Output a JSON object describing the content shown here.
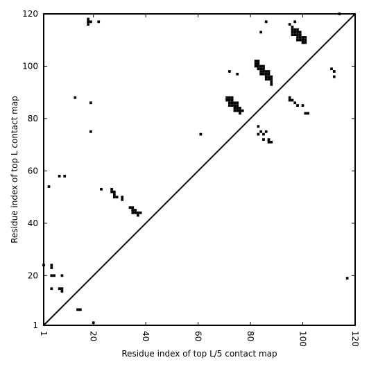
{
  "chart_data": {
    "type": "heatmap",
    "title": "",
    "xlabel": "Residue index of top L/5 contact map",
    "ylabel": "Residue index of top L contact map",
    "xlim": [
      1,
      120
    ],
    "ylim": [
      1,
      120
    ],
    "xticks": [
      1,
      20,
      40,
      60,
      80,
      100,
      120
    ],
    "yticks": [
      1,
      20,
      40,
      60,
      80,
      100,
      120
    ],
    "diagonal": true,
    "grid": false,
    "cell_color": "#000000",
    "lower_points": [
      [
        1,
        24
      ],
      [
        4,
        23
      ],
      [
        4,
        24
      ],
      [
        4,
        20
      ],
      [
        5,
        20
      ],
      [
        8,
        20
      ],
      [
        4,
        15
      ],
      [
        7,
        15
      ],
      [
        8,
        15
      ],
      [
        8,
        14
      ],
      [
        9,
        58
      ],
      [
        14,
        7
      ],
      [
        15,
        7
      ],
      [
        20,
        2
      ],
      [
        27,
        53
      ],
      [
        27,
        52
      ],
      [
        28,
        52
      ],
      [
        28,
        51
      ],
      [
        28,
        50
      ],
      [
        29,
        50
      ],
      [
        31,
        50
      ],
      [
        31,
        49
      ],
      [
        23,
        53
      ],
      [
        34,
        46
      ],
      [
        35,
        46
      ],
      [
        35,
        45
      ],
      [
        36,
        45
      ],
      [
        35,
        44
      ],
      [
        36,
        44
      ],
      [
        37,
        44
      ],
      [
        37,
        43
      ],
      [
        38,
        44
      ],
      [
        61,
        74
      ],
      [
        71,
        88
      ],
      [
        72,
        88
      ],
      [
        73,
        88
      ],
      [
        71,
        87
      ],
      [
        72,
        87
      ],
      [
        73,
        87
      ],
      [
        72,
        86
      ],
      [
        73,
        86
      ],
      [
        72,
        85
      ],
      [
        73,
        85
      ],
      [
        74,
        86
      ],
      [
        75,
        86
      ],
      [
        74,
        85
      ],
      [
        75,
        85
      ],
      [
        74,
        84
      ],
      [
        75,
        84
      ],
      [
        74,
        83
      ],
      [
        75,
        83
      ],
      [
        76,
        84
      ],
      [
        76,
        83
      ],
      [
        77,
        83
      ],
      [
        76,
        82
      ],
      [
        72,
        98
      ],
      [
        75,
        97
      ],
      [
        82,
        102
      ],
      [
        83,
        102
      ],
      [
        82,
        101
      ],
      [
        83,
        101
      ],
      [
        82,
        100
      ],
      [
        83,
        100
      ],
      [
        84,
        100
      ],
      [
        85,
        100
      ],
      [
        83,
        99
      ],
      [
        84,
        99
      ],
      [
        85,
        99
      ],
      [
        84,
        98
      ],
      [
        85,
        98
      ],
      [
        86,
        98
      ],
      [
        87,
        98
      ],
      [
        84,
        97
      ],
      [
        85,
        97
      ],
      [
        86,
        97
      ],
      [
        87,
        97
      ],
      [
        86,
        96
      ],
      [
        87,
        96
      ],
      [
        88,
        96
      ],
      [
        86,
        95
      ],
      [
        87,
        95
      ],
      [
        88,
        95
      ],
      [
        88,
        94
      ],
      [
        88,
        93
      ],
      [
        84,
        113
      ],
      [
        86,
        117
      ],
      [
        83,
        77
      ],
      [
        83,
        74
      ],
      [
        84,
        75
      ],
      [
        85,
        74
      ],
      [
        86,
        75
      ],
      [
        85,
        72
      ],
      [
        87,
        72
      ],
      [
        87,
        71
      ],
      [
        88,
        71
      ],
      [
        95,
        116
      ],
      [
        96,
        115
      ],
      [
        97,
        117
      ],
      [
        96,
        114
      ],
      [
        97,
        114
      ],
      [
        98,
        114
      ],
      [
        96,
        113
      ],
      [
        97,
        113
      ],
      [
        98,
        113
      ],
      [
        99,
        113
      ],
      [
        96,
        112
      ],
      [
        97,
        112
      ],
      [
        98,
        112
      ],
      [
        99,
        112
      ],
      [
        98,
        111
      ],
      [
        99,
        111
      ],
      [
        100,
        111
      ],
      [
        101,
        111
      ],
      [
        98,
        110
      ],
      [
        99,
        110
      ],
      [
        100,
        110
      ],
      [
        101,
        110
      ],
      [
        100,
        109
      ],
      [
        101,
        109
      ],
      [
        95,
        88
      ],
      [
        95,
        87
      ],
      [
        96,
        87
      ],
      [
        97,
        86
      ],
      [
        98,
        85
      ],
      [
        100,
        85
      ],
      [
        101,
        82
      ],
      [
        102,
        82
      ],
      [
        111,
        99
      ],
      [
        112,
        98
      ],
      [
        112,
        96
      ],
      [
        114,
        120
      ],
      [
        117,
        19
      ]
    ],
    "upper_points": [
      [
        3,
        54
      ],
      [
        7,
        58
      ],
      [
        13,
        88
      ],
      [
        18,
        118
      ],
      [
        18,
        117
      ],
      [
        18,
        116
      ],
      [
        19,
        117
      ],
      [
        22,
        117
      ],
      [
        19,
        86
      ],
      [
        19,
        75
      ]
    ]
  }
}
